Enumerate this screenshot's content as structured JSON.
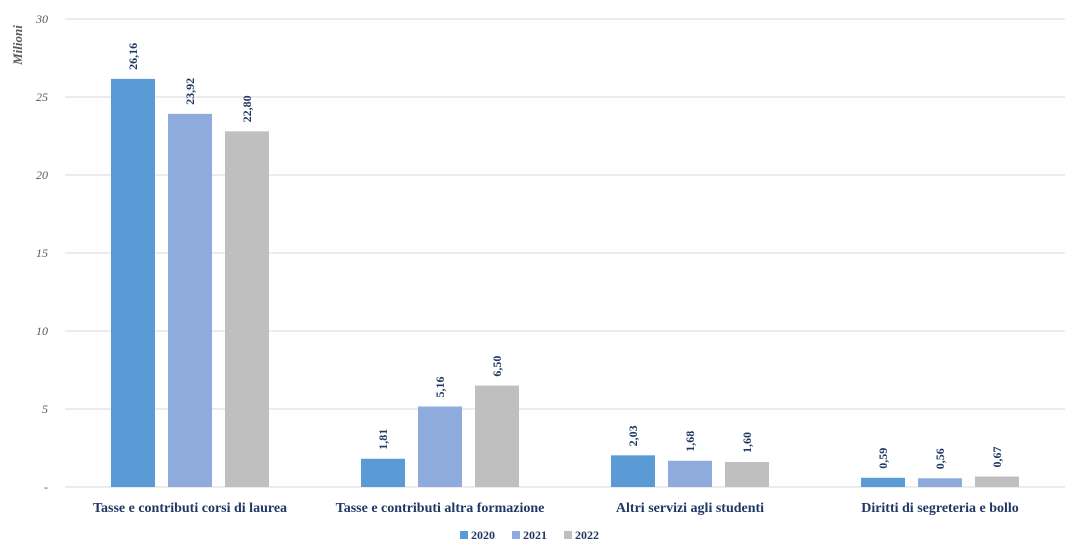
{
  "chart_data": {
    "type": "bar",
    "ylabel": "Milioni",
    "ylim": [
      0,
      30
    ],
    "yticks": [
      {
        "value": 0,
        "label": "-"
      },
      {
        "value": 5,
        "label": "5"
      },
      {
        "value": 10,
        "label": "10"
      },
      {
        "value": 15,
        "label": "15"
      },
      {
        "value": 20,
        "label": "20"
      },
      {
        "value": 25,
        "label": "25"
      },
      {
        "value": 30,
        "label": "30"
      }
    ],
    "categories": [
      "Tasse e contributi corsi di laurea",
      "Tasse e contributi altra formazione",
      "Altri servizi agli studenti",
      "Diritti di segreteria e bollo"
    ],
    "series": [
      {
        "name": "2020",
        "color": "#5b9bd5",
        "values": [
          26.16,
          1.81,
          2.03,
          0.59
        ],
        "labels": [
          "26,16",
          "1,81",
          "2,03",
          "0,59"
        ]
      },
      {
        "name": "2021",
        "color": "#8faadc",
        "values": [
          23.92,
          5.16,
          1.68,
          0.56
        ],
        "labels": [
          "23,92",
          "5,16",
          "1,68",
          "0,56"
        ]
      },
      {
        "name": "2022",
        "color": "#bfbfbf",
        "values": [
          22.8,
          6.5,
          1.6,
          0.67
        ],
        "labels": [
          "22,80",
          "6,50",
          "1,60",
          "0,67"
        ]
      }
    ],
    "legend_position": "bottom-center",
    "grid": true
  }
}
